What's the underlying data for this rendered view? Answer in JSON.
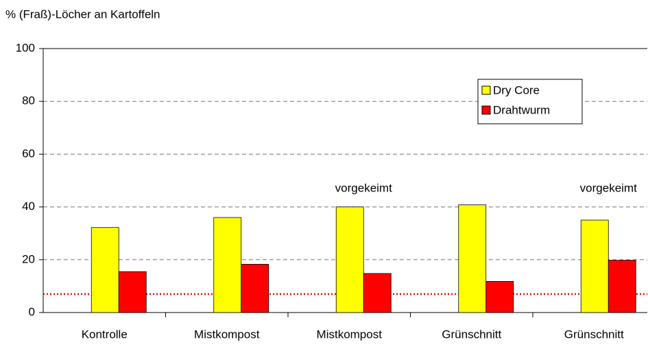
{
  "chart_data": {
    "type": "bar",
    "title": "% (Fraß)-Löcher an Kartoffeln",
    "categories": [
      "Kontrolle",
      "Mistkompost",
      "Mistkompost",
      "Grünschnitt",
      "Grünschnitt"
    ],
    "category_notes": [
      null,
      null,
      "vorgekeimt",
      null,
      "vorgekeimt"
    ],
    "series": [
      {
        "name": "Dry Core",
        "color": "#ffff00",
        "values": [
          32.2,
          36,
          40,
          40.8,
          35
        ]
      },
      {
        "name": "Drahtwurm",
        "color": "#ff0000",
        "values": [
          15.5,
          18.3,
          14.8,
          11.8,
          19.8
        ]
      }
    ],
    "reference_line": {
      "value": 7,
      "color": "#ff0000"
    },
    "ylim": [
      0,
      100
    ],
    "yticks": [
      0,
      20,
      40,
      60,
      80,
      100
    ],
    "grid": true,
    "legend": "upper right"
  }
}
